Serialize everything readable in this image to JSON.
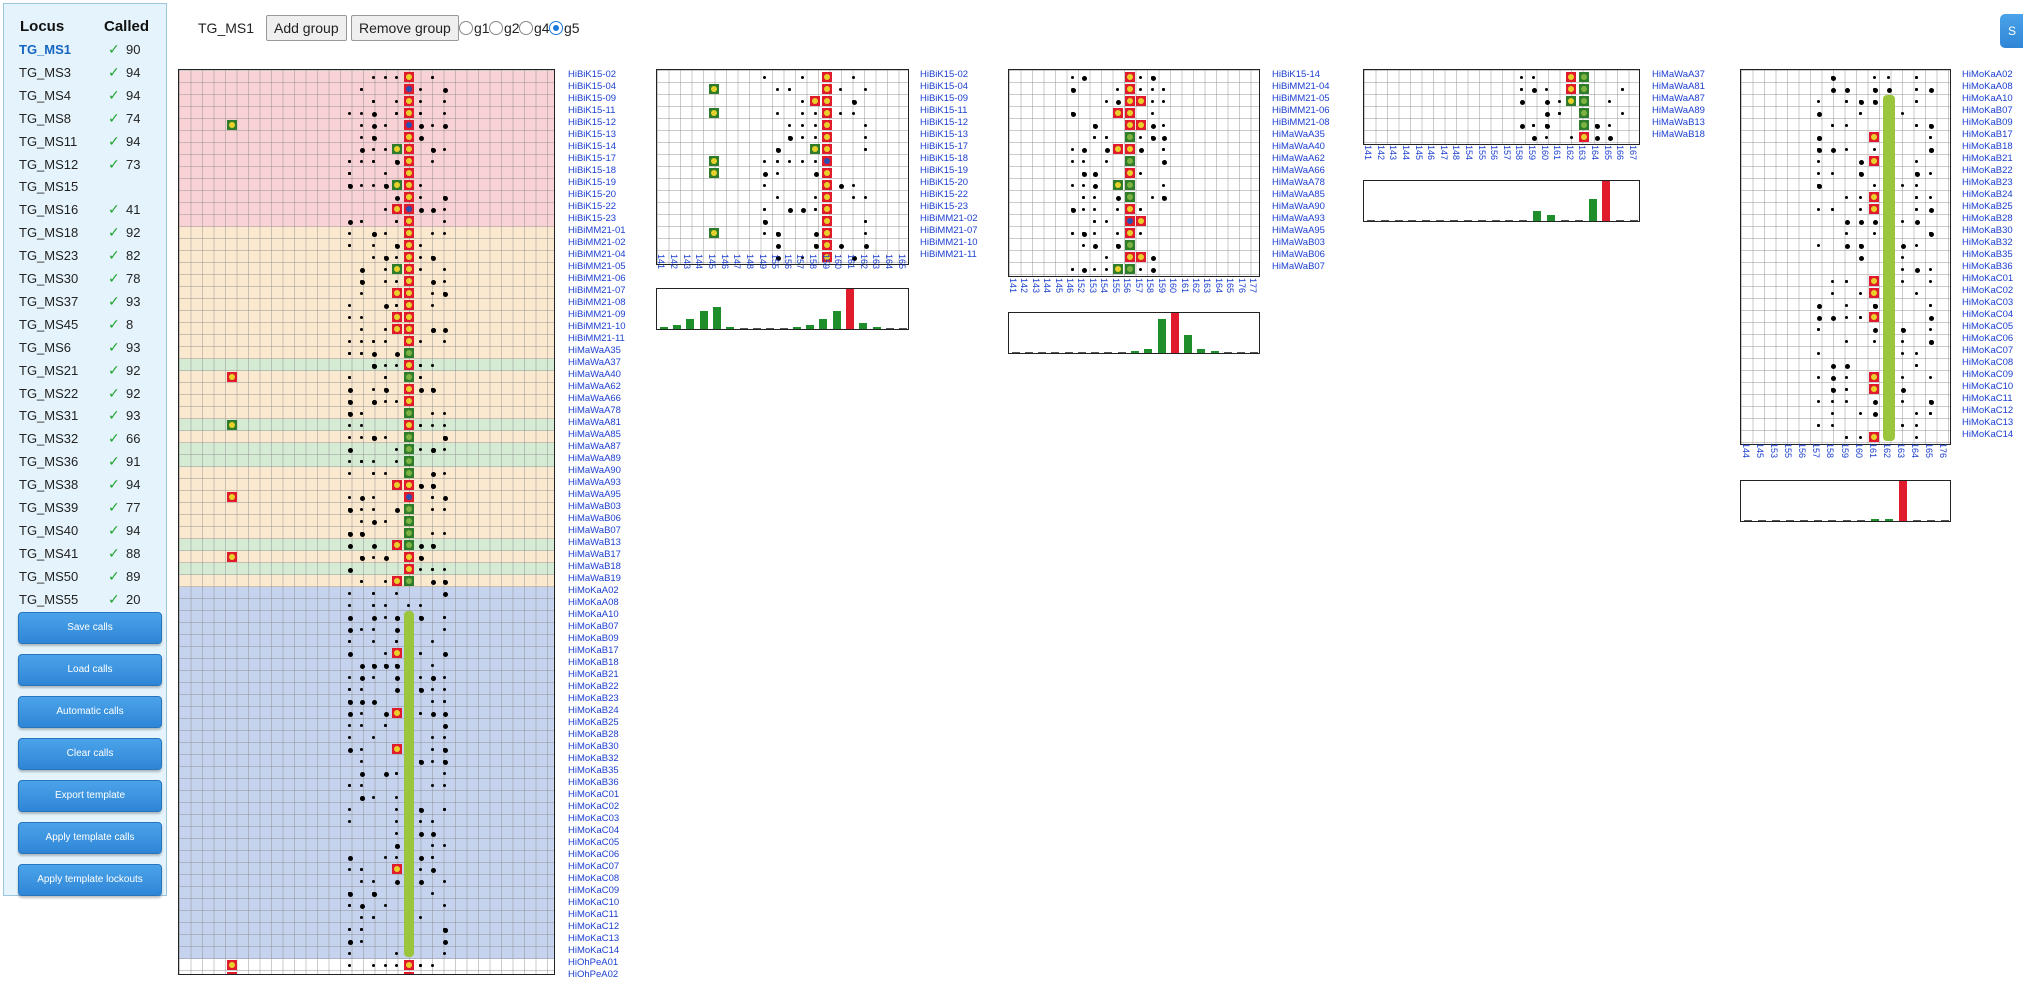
{
  "sidebar": {
    "header": {
      "locus": "Locus",
      "called": "Called"
    },
    "loci": [
      {
        "name": "TG_MS1",
        "count": "90",
        "checked": true,
        "active": true
      },
      {
        "name": "TG_MS3",
        "count": "94",
        "checked": true
      },
      {
        "name": "TG_MS4",
        "count": "94",
        "checked": true
      },
      {
        "name": "TG_MS8",
        "count": "74",
        "checked": true
      },
      {
        "name": "TG_MS11",
        "count": "94",
        "checked": true
      },
      {
        "name": "TG_MS12",
        "count": "73",
        "checked": true
      },
      {
        "name": "TG_MS15",
        "count": "",
        "checked": false
      },
      {
        "name": "TG_MS16",
        "count": "41",
        "checked": true
      },
      {
        "name": "TG_MS18",
        "count": "92",
        "checked": true
      },
      {
        "name": "TG_MS23",
        "count": "82",
        "checked": true
      },
      {
        "name": "TG_MS30",
        "count": "78",
        "checked": true
      },
      {
        "name": "TG_MS37",
        "count": "93",
        "checked": true
      },
      {
        "name": "TG_MS45",
        "count": "8",
        "checked": true
      },
      {
        "name": "TG_MS6",
        "count": "93",
        "checked": true
      },
      {
        "name": "TG_MS21",
        "count": "92",
        "checked": true
      },
      {
        "name": "TG_MS22",
        "count": "92",
        "checked": true
      },
      {
        "name": "TG_MS31",
        "count": "93",
        "checked": true
      },
      {
        "name": "TG_MS32",
        "count": "66",
        "checked": true
      },
      {
        "name": "TG_MS36",
        "count": "91",
        "checked": true
      },
      {
        "name": "TG_MS38",
        "count": "94",
        "checked": true
      },
      {
        "name": "TG_MS39",
        "count": "77",
        "checked": true
      },
      {
        "name": "TG_MS40",
        "count": "94",
        "checked": true
      },
      {
        "name": "TG_MS41",
        "count": "88",
        "checked": true
      },
      {
        "name": "TG_MS50",
        "count": "89",
        "checked": true
      },
      {
        "name": "TG_MS55",
        "count": "20",
        "checked": true
      }
    ],
    "check_glyph": "✓",
    "buttons": [
      "Save calls",
      "Load calls",
      "Automatic calls",
      "Clear calls",
      "Export template",
      "Apply template calls",
      "Apply template lockouts"
    ]
  },
  "toolbar": {
    "locus_title": "TG_MS1",
    "add_group_label": "Add group",
    "remove_group_label": "Remove group",
    "groups": [
      {
        "label": "g1",
        "selected": false
      },
      {
        "label": "g2",
        "selected": false
      },
      {
        "label": "g4",
        "selected": false
      },
      {
        "label": "g5",
        "selected": true
      }
    ],
    "corner_button_label": "S"
  },
  "colors": {
    "band_pink": "#f9d2d6",
    "band_beige": "#fbe9cf",
    "band_green": "#d5ebd3",
    "band_blue": "#c5d3ee",
    "label_blue": "#1a3fd0",
    "button_blue": "#3a93e0",
    "check_green": "#1fa32f",
    "peak_red": "#e01b2c",
    "peak_green": "#2f7d2a",
    "callbar_green": "#9bc53d"
  },
  "panels": [
    {
      "id": "main",
      "samples": [
        "HiBiK15-02",
        "HiBiK15-04",
        "HiBiK15-09",
        "HiBiK15-11",
        "HiBiK15-12",
        "HiBiK15-13",
        "HiBiK15-14",
        "HiBiK15-17",
        "HiBiK15-18",
        "HiBiK15-19",
        "HiBiK15-20",
        "HiBiK15-22",
        "HiBiK15-23",
        "HiBiMM21-01",
        "HiBiMM21-02",
        "HiBiMM21-04",
        "HiBiMM21-05",
        "HiBiMM21-06",
        "HiBiMM21-07",
        "HiBiMM21-08",
        "HiBiMM21-09",
        "HiBiMM21-10",
        "HiBiMM21-11",
        "HiMaWaA35",
        "HiMaWaA37",
        "HiMaWaA40",
        "HiMaWaA62",
        "HiMaWaA66",
        "HiMaWaA78",
        "HiMaWaA81",
        "HiMaWaA85",
        "HiMaWaA87",
        "HiMaWaA89",
        "HiMaWaA90",
        "HiMaWaA93",
        "HiMaWaA95",
        "HiMaWaB03",
        "HiMaWaB06",
        "HiMaWaB07",
        "HiMaWaB13",
        "HiMaWaB17",
        "HiMaWaB18",
        "HiMaWaB19",
        "HiMoKaA02",
        "HiMoKaA08",
        "HiMoKaA10",
        "HiMoKaB07",
        "HiMoKaB09",
        "HiMoKaB17",
        "HiMoKaB18",
        "HiMoKaB21",
        "HiMoKaB22",
        "HiMoKaB23",
        "HiMoKaB24",
        "HiMoKaB25",
        "HiMoKaB28",
        "HiMoKaB30",
        "HiMoKaB32",
        "HiMoKaB35",
        "HiMoKaB36",
        "HiMoKaC01",
        "HiMoKaC02",
        "HiMoKaC03",
        "HiMoKaC04",
        "HiMoKaC05",
        "HiMoKaC06",
        "HiMoKaC07",
        "HiMoKaC08",
        "HiMoKaC09",
        "HiMoKaC10",
        "HiMoKaC11",
        "HiMoKaC12",
        "HiMoKaC13",
        "HiMoKaC14",
        "HiOhPeA01",
        "HiOhPeA02"
      ],
      "xticks": []
    },
    {
      "id": "bik15",
      "samples": [
        "HiBiK15-02",
        "HiBiK15-04",
        "HiBiK15-09",
        "HiBiK15-11",
        "HiBiK15-12",
        "HiBiK15-13",
        "HiBiK15-17",
        "HiBiK15-18",
        "HiBiK15-19",
        "HiBiK15-20",
        "HiBiK15-22",
        "HiBiK15-23",
        "HiBiMM21-02",
        "HiBiMM21-07",
        "HiBiMM21-10",
        "HiBiMM21-11"
      ],
      "xticks": [
        "141",
        "142",
        "143",
        "144",
        "145",
        "146",
        "147",
        "148",
        "149",
        "155",
        "156",
        "157",
        "158",
        "159",
        "160",
        "161",
        "162",
        "163",
        "164",
        "165"
      ]
    },
    {
      "id": "mawa",
      "samples": [
        "HiBiK15-14",
        "HiBiMM21-04",
        "HiBiMM21-05",
        "HiBiMM21-06",
        "HiBiMM21-08",
        "HiMaWaA35",
        "HiMaWaA40",
        "HiMaWaA62",
        "HiMaWaA66",
        "HiMaWaA78",
        "HiMaWaA85",
        "HiMaWaA90",
        "HiMaWaA93",
        "HiMaWaA95",
        "HiMaWaB03",
        "HiMaWaB06",
        "HiMaWaB07"
      ],
      "xticks": [
        "141",
        "142",
        "143",
        "144",
        "145",
        "146",
        "152",
        "153",
        "154",
        "155",
        "156",
        "157",
        "158",
        "159",
        "160",
        "161",
        "162",
        "163",
        "164",
        "165",
        "176",
        "177"
      ]
    },
    {
      "id": "mawa2",
      "samples": [
        "HiMaWaA37",
        "HiMaWaA81",
        "HiMaWaA87",
        "HiMaWaA89",
        "HiMaWaB13",
        "HiMaWaB18"
      ],
      "xticks": [
        "141",
        "142",
        "143",
        "144",
        "145",
        "146",
        "147",
        "148",
        "154",
        "155",
        "156",
        "157",
        "158",
        "159",
        "160",
        "161",
        "162",
        "163",
        "164",
        "165",
        "166",
        "167"
      ]
    },
    {
      "id": "moka",
      "samples": [
        "HiMoKaA02",
        "HiMoKaA08",
        "HiMoKaA10",
        "HiMoKaB07",
        "HiMoKaB09",
        "HiMoKaB17",
        "HiMoKaB18",
        "HiMoKaB21",
        "HiMoKaB22",
        "HiMoKaB23",
        "HiMoKaB24",
        "HiMoKaB25",
        "HiMoKaB28",
        "HiMoKaB30",
        "HiMoKaB32",
        "HiMoKaB35",
        "HiMoKaB36",
        "HiMoKaC01",
        "HiMoKaC02",
        "HiMoKaC03",
        "HiMoKaC04",
        "HiMoKaC05",
        "HiMoKaC06",
        "HiMoKaC07",
        "HiMoKaC08",
        "HiMoKaC09",
        "HiMoKaC10",
        "HiMoKaC11",
        "HiMoKaC12",
        "HiMoKaC13",
        "HiMoKaC14"
      ],
      "xticks": [
        "144",
        "145",
        "153",
        "155",
        "156",
        "157",
        "158",
        "159",
        "160",
        "161",
        "162",
        "163",
        "164",
        "165",
        "176"
      ]
    }
  ],
  "histograms": [
    {
      "panel": "bik15",
      "values": [
        0.05,
        0.1,
        0.25,
        0.45,
        0.55,
        0.05,
        0.02,
        0.02,
        0.02,
        0.02,
        0.05,
        0.1,
        0.25,
        0.45,
        1.0,
        0.15,
        0.05,
        0.02,
        0.02
      ],
      "peak_index": 14
    },
    {
      "panel": "mawa",
      "values": [
        0.02,
        0.02,
        0.02,
        0.02,
        0.02,
        0.02,
        0.02,
        0.02,
        0.02,
        0.05,
        0.1,
        0.85,
        1.0,
        0.45,
        0.1,
        0.05,
        0.02,
        0.02,
        0.02
      ],
      "peak_index": 12
    },
    {
      "panel": "mawa2",
      "values": [
        0.02,
        0.02,
        0.02,
        0.02,
        0.02,
        0.02,
        0.02,
        0.02,
        0.02,
        0.02,
        0.02,
        0.02,
        0.25,
        0.15,
        0.02,
        0.02,
        0.55,
        1.0,
        0.02,
        0.02
      ],
      "peak_index": 17
    },
    {
      "panel": "moka",
      "values": [
        0.02,
        0.02,
        0.02,
        0.02,
        0.02,
        0.02,
        0.02,
        0.02,
        0.02,
        0.05,
        0.05,
        1.0,
        0.02,
        0.02,
        0.02
      ],
      "peak_index": 11
    }
  ]
}
